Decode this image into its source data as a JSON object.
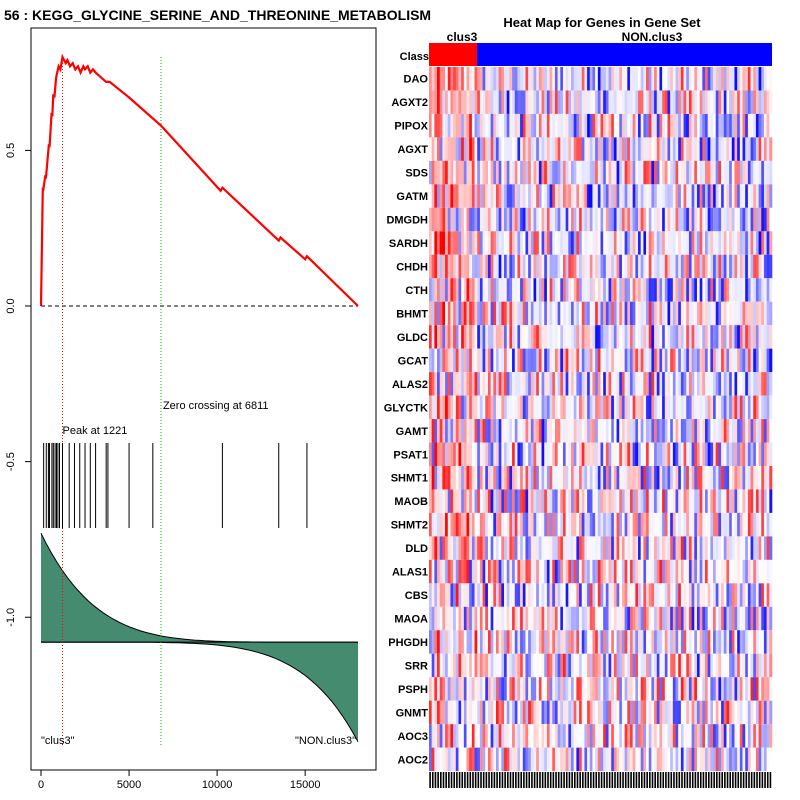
{
  "page_title": "56 : KEGG_GLYCINE_SERINE_AND_THREONINE_METABOLISM",
  "colors": {
    "es_line": "#ff0000",
    "peak_line": "#ff0000",
    "zero_line": "#00bb00",
    "metric_fill": "#448b70",
    "class1": "#ff0000",
    "class2": "#0000ff",
    "hit": "#000000"
  },
  "chart_data": [
    {
      "type": "line",
      "title": "Enrichment plot",
      "x_range": [
        0,
        18000
      ],
      "y_range": [
        -1.42,
        0.9
      ],
      "x_ticks": [
        0,
        5000,
        10000,
        15000
      ],
      "x_tick_labels": [
        "0",
        "5000",
        "10000",
        "15000"
      ],
      "y_ticks": [
        0.5,
        0.0,
        -0.5,
        -1.0
      ],
      "y_tick_labels": [
        "0.5",
        "0.0",
        "-0.5",
        "-1.0"
      ],
      "es_curve": {
        "x": [
          0,
          100,
          120,
          250,
          280,
          450,
          480,
          600,
          640,
          700,
          760,
          850,
          880,
          1000,
          1100,
          1221,
          1400,
          1500,
          1650,
          1800,
          1950,
          2100,
          2250,
          2400,
          2500,
          2650,
          2800,
          2950,
          3100,
          3300,
          3500,
          3700,
          3900,
          5000,
          6811,
          10200,
          10300,
          13500,
          13600,
          15000,
          15100,
          18000
        ],
        "y": [
          0.0,
          0.38,
          0.37,
          0.42,
          0.41,
          0.52,
          0.51,
          0.62,
          0.61,
          0.68,
          0.67,
          0.73,
          0.74,
          0.77,
          0.76,
          0.8,
          0.78,
          0.79,
          0.77,
          0.78,
          0.76,
          0.77,
          0.75,
          0.77,
          0.76,
          0.77,
          0.75,
          0.76,
          0.75,
          0.74,
          0.73,
          0.72,
          0.72,
          0.67,
          0.58,
          0.37,
          0.38,
          0.21,
          0.22,
          0.15,
          0.16,
          0.0
        ]
      },
      "hits": [
        150,
        300,
        420,
        480,
        620,
        700,
        800,
        880,
        960,
        1050,
        1221,
        1600,
        1900,
        2200,
        2500,
        2800,
        3100,
        3700,
        3800,
        5000,
        6350,
        10300,
        13500,
        15100
      ],
      "peak": {
        "x": 1221,
        "label": "Peak at 1221"
      },
      "zero_crossing": {
        "x": 6811,
        "label": "Zero crossing at 6811"
      },
      "ranked_metric": {
        "baseline": -1.08,
        "top": -0.73,
        "bottom": -1.4
      },
      "class_labels": [
        "\"clus3\"",
        "\"NON.clus3\""
      ]
    },
    {
      "type": "heatmap",
      "title": "Heat Map for Genes in Gene Set",
      "class_row_label": "Class",
      "groups": [
        {
          "name": "clus3",
          "fraction": 0.14
        },
        {
          "name": "NON.clus3",
          "fraction": 0.86
        }
      ],
      "genes": [
        "DAO",
        "AGXT2",
        "PIPOX",
        "AGXT",
        "SDS",
        "GATM",
        "DMGDH",
        "SARDH",
        "CHDH",
        "CTH",
        "BHMT",
        "GLDC",
        "GCAT",
        "ALAS2",
        "GLYCTK",
        "GAMT",
        "PSAT1",
        "SHMT1",
        "MAOB",
        "SHMT2",
        "DLD",
        "ALAS1",
        "CBS",
        "MAOA",
        "PHGDH",
        "SRR",
        "PSPH",
        "GNMT",
        "AOC3",
        "AOC2"
      ],
      "n_samples": 128,
      "value_range": [
        -1,
        1
      ]
    }
  ]
}
